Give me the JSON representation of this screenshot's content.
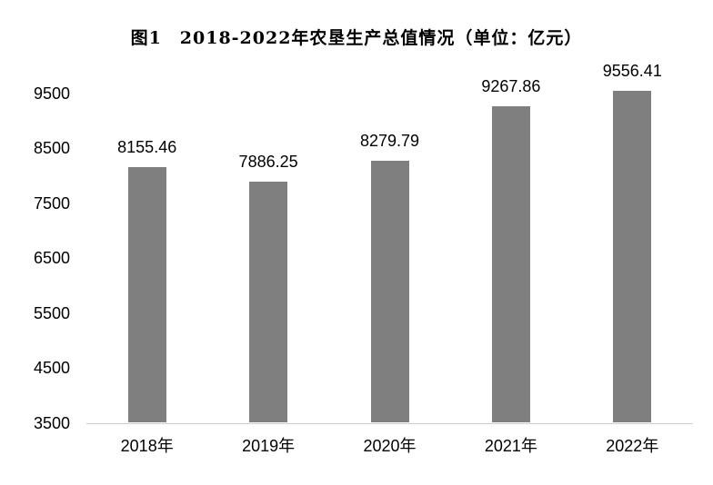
{
  "chart_data": {
    "type": "bar",
    "title": "图1　2018-2022年农垦生产总值情况（单位：亿元）",
    "unit_label": "亿元",
    "categories": [
      "2018年",
      "2019年",
      "2020年",
      "2021年",
      "2022年"
    ],
    "values": [
      8155.46,
      7886.25,
      8279.79,
      9267.86,
      9556.41
    ],
    "value_labels": [
      "8155.46",
      "7886.25",
      "8279.79",
      "9267.86",
      "9556.41"
    ],
    "yticks": [
      3500,
      4500,
      5500,
      6500,
      7500,
      8500,
      9500
    ],
    "ylim": [
      3500,
      9500
    ],
    "grid": false,
    "legend": false,
    "bar_color": "#7f7f7f",
    "axis_line_color": "#cfcfcf",
    "text_color": "#000000",
    "background_color": "#ffffff"
  }
}
